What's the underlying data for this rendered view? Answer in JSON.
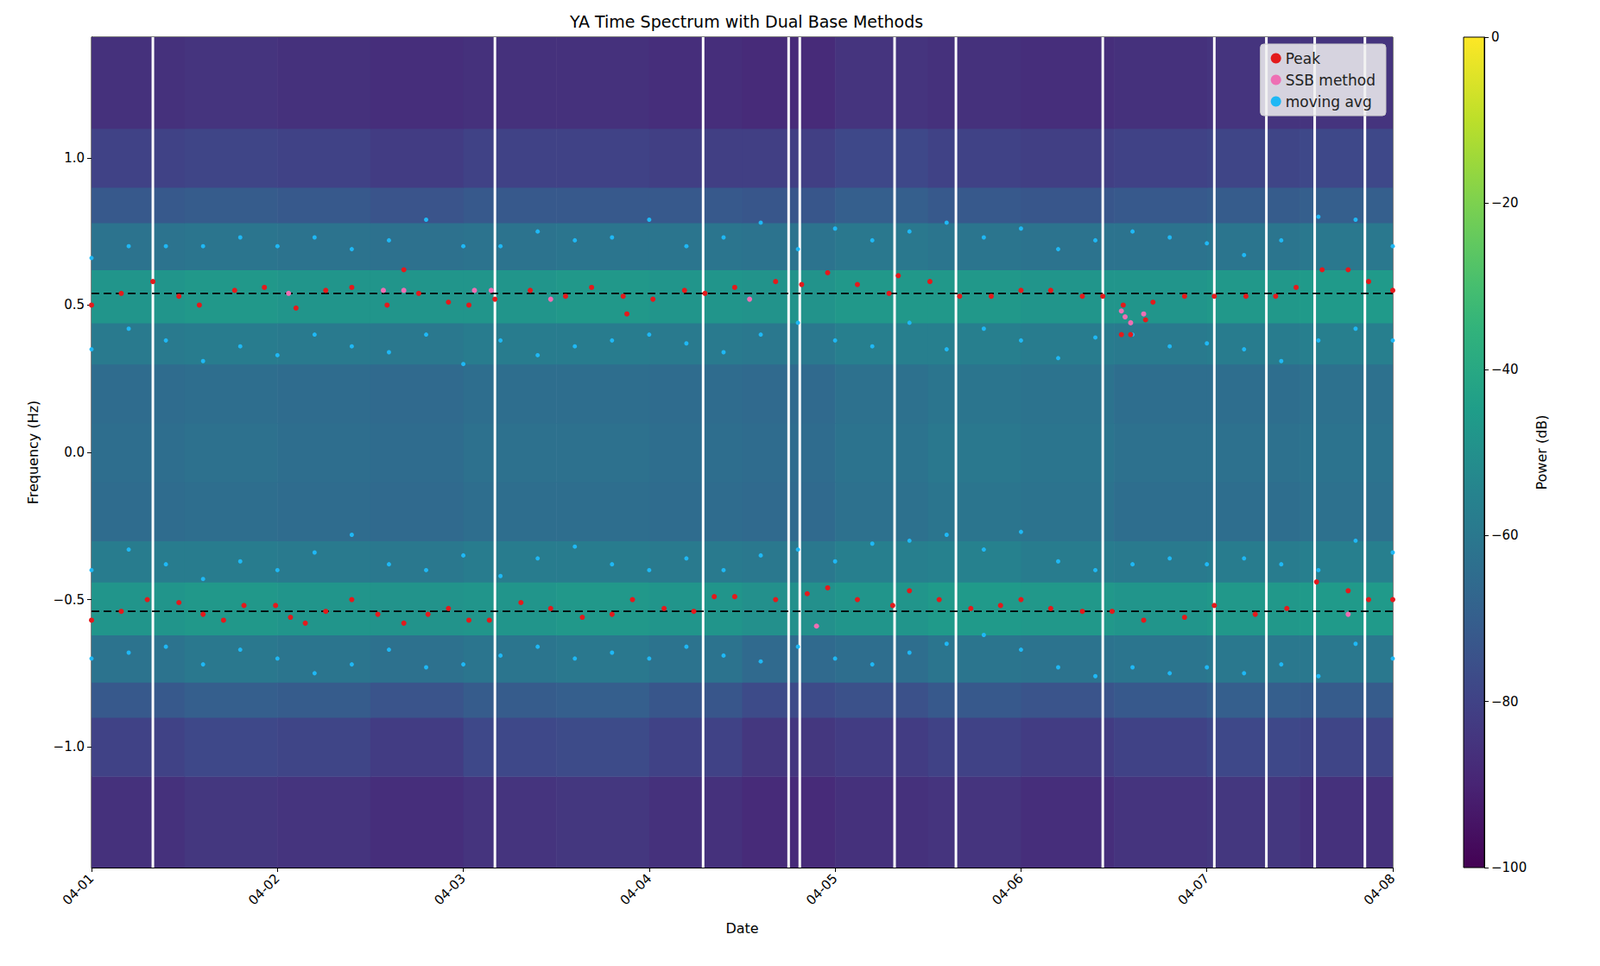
{
  "chart_data": {
    "type": "scatter",
    "title": "YA Time Spectrum with Dual Base Methods",
    "x_label": "Date",
    "y_label": "Frequency (Hz)",
    "grid": false,
    "legend": "upper right",
    "xlim": [
      0,
      7
    ],
    "xticks": [
      {
        "value": 0,
        "label": "04-01"
      },
      {
        "value": 1,
        "label": "04-02"
      },
      {
        "value": 2,
        "label": "04-03"
      },
      {
        "value": 3,
        "label": "04-04"
      },
      {
        "value": 4,
        "label": "04-05"
      },
      {
        "value": 5,
        "label": "04-06"
      },
      {
        "value": 6,
        "label": "04-07"
      },
      {
        "value": 7,
        "label": "04-08"
      }
    ],
    "ylim": [
      -1.41,
      1.41
    ],
    "yticks": [
      {
        "value": -1,
        "label": "−1.0"
      },
      {
        "value": -0.5,
        "label": "−0.5"
      },
      {
        "value": 0,
        "label": "0.0"
      },
      {
        "value": 0.5,
        "label": "0.5"
      },
      {
        "value": 1,
        "label": "1.0"
      }
    ],
    "series": [
      {
        "name": "Peak",
        "color": "#e31a1c",
        "marker": "circle",
        "x": [
          0,
          0.16,
          0.33,
          0.47,
          0.58,
          0.77,
          0.93,
          1.1,
          1.26,
          1.4,
          1.59,
          1.76,
          1.92,
          2.03,
          2.17,
          2.36,
          2.55,
          2.69,
          2.86,
          3.02,
          3.19,
          3.3,
          3.46,
          3.68,
          3.82,
          3.96,
          4.12,
          4.29,
          4.34,
          4.51,
          4.67,
          4.84,
          5,
          5.16,
          5.33,
          5.44,
          5.55,
          5.71,
          5.88,
          6.04,
          6.21,
          6.37,
          6.48,
          6.62,
          6.76,
          6.87,
          7,
          0,
          0.16,
          0.3,
          0.47,
          0.6,
          0.71,
          0.82,
          0.99,
          1.07,
          1.15,
          1.26,
          1.4,
          1.54,
          1.68,
          1.81,
          1.92,
          2.03,
          2.14,
          2.31,
          2.47,
          2.64,
          2.8,
          2.91,
          3.08,
          3.24,
          3.35,
          3.46,
          3.68,
          3.85,
          3.96,
          4.12,
          4.31,
          4.4,
          4.56,
          4.73,
          4.89,
          5,
          5.16,
          5.33,
          5.49,
          5.66,
          5.88,
          6.04,
          6.26,
          6.43,
          6.59,
          6.76,
          6.87,
          7,
          1.68,
          2.88,
          5.54,
          5.59,
          5.67
        ],
        "values": [
          0.5,
          0.54,
          0.58,
          0.53,
          0.5,
          0.55,
          0.56,
          0.49,
          0.55,
          0.56,
          0.5,
          0.54,
          0.51,
          0.5,
          0.52,
          0.55,
          0.53,
          0.56,
          0.53,
          0.52,
          0.55,
          0.54,
          0.56,
          0.58,
          0.57,
          0.61,
          0.57,
          0.54,
          0.6,
          0.58,
          0.53,
          0.53,
          0.55,
          0.55,
          0.53,
          0.53,
          0.5,
          0.51,
          0.53,
          0.53,
          0.53,
          0.53,
          0.56,
          0.62,
          0.62,
          0.58,
          0.55,
          -0.57,
          -0.54,
          -0.5,
          -0.51,
          -0.55,
          -0.57,
          -0.52,
          -0.52,
          -0.56,
          -0.58,
          -0.54,
          -0.5,
          -0.55,
          -0.58,
          -0.55,
          -0.53,
          -0.57,
          -0.57,
          -0.51,
          -0.53,
          -0.56,
          -0.55,
          -0.5,
          -0.53,
          -0.54,
          -0.49,
          -0.49,
          -0.5,
          -0.48,
          -0.46,
          -0.5,
          -0.52,
          -0.47,
          -0.5,
          -0.53,
          -0.52,
          -0.5,
          -0.53,
          -0.54,
          -0.54,
          -0.57,
          -0.56,
          -0.52,
          -0.55,
          -0.53,
          -0.44,
          -0.47,
          -0.5,
          -0.5,
          0.62,
          0.47,
          0.4,
          0.4,
          0.45
        ]
      },
      {
        "name": "SSB method",
        "color": "#ee6fb4",
        "marker": "circle",
        "x": [
          1.06,
          1.57,
          1.68,
          2.06,
          2.15,
          2.47,
          3.54,
          5.54,
          5.56,
          5.59,
          5.66,
          3.9,
          6.76
        ],
        "values": [
          0.54,
          0.55,
          0.55,
          0.55,
          0.55,
          0.52,
          0.52,
          0.48,
          0.46,
          0.44,
          0.47,
          -0.59,
          -0.55
        ]
      },
      {
        "name": "moving avg",
        "color": "#1fb8f5",
        "marker": "circle",
        "x": [
          0,
          0.2,
          0.4,
          0.6,
          0.8,
          1,
          1.2,
          1.4,
          1.6,
          1.8,
          2,
          2.2,
          2.4,
          2.6,
          2.8,
          3,
          3.2,
          3.4,
          3.6,
          3.8,
          4,
          4.2,
          4.4,
          4.6,
          4.8,
          5,
          5.2,
          5.4,
          5.6,
          5.8,
          6,
          6.2,
          6.4,
          6.6,
          6.8,
          7,
          0,
          0.2,
          0.4,
          0.6,
          0.8,
          1,
          1.2,
          1.4,
          1.6,
          1.8,
          2,
          2.2,
          2.4,
          2.6,
          2.8,
          3,
          3.2,
          3.4,
          3.6,
          3.8,
          4,
          4.2,
          4.4,
          4.6,
          4.8,
          5,
          5.2,
          5.4,
          5.6,
          5.8,
          6,
          6.2,
          6.4,
          6.6,
          6.8,
          7,
          0,
          0.2,
          0.4,
          0.6,
          0.8,
          1,
          1.2,
          1.4,
          1.6,
          1.8,
          2,
          2.2,
          2.4,
          2.6,
          2.8,
          3,
          3.2,
          3.4,
          3.6,
          3.8,
          4,
          4.2,
          4.4,
          4.6,
          4.8,
          5,
          5.2,
          5.4,
          5.6,
          5.8,
          6,
          6.2,
          6.4,
          6.6,
          6.8,
          7,
          0,
          0.2,
          0.4,
          0.6,
          0.8,
          1,
          1.2,
          1.4,
          1.6,
          1.8,
          2,
          2.2,
          2.4,
          2.6,
          2.8,
          3,
          3.2,
          3.4,
          3.6,
          3.8,
          4,
          4.2,
          4.4,
          4.6,
          4.8,
          5,
          5.2,
          5.4,
          5.6,
          5.8,
          6,
          6.2,
          6.4,
          6.6,
          6.8,
          7
        ],
        "values": [
          0.66,
          0.7,
          0.7,
          0.7,
          0.73,
          0.7,
          0.73,
          0.69,
          0.72,
          0.79,
          0.7,
          0.7,
          0.75,
          0.72,
          0.73,
          0.79,
          0.7,
          0.73,
          0.78,
          0.69,
          0.76,
          0.72,
          0.75,
          0.78,
          0.73,
          0.76,
          0.69,
          0.72,
          0.75,
          0.73,
          0.71,
          0.67,
          0.72,
          0.8,
          0.79,
          0.7,
          0.35,
          0.42,
          0.38,
          0.31,
          0.36,
          0.33,
          0.4,
          0.36,
          0.34,
          0.4,
          0.3,
          0.38,
          0.33,
          0.36,
          0.38,
          0.4,
          0.37,
          0.34,
          0.4,
          0.44,
          0.38,
          0.36,
          0.44,
          0.35,
          0.42,
          0.38,
          0.32,
          0.39,
          0.4,
          0.36,
          0.37,
          0.35,
          0.31,
          0.38,
          0.42,
          0.38,
          -0.4,
          -0.33,
          -0.38,
          -0.43,
          -0.37,
          -0.4,
          -0.34,
          -0.28,
          -0.38,
          -0.4,
          -0.35,
          -0.42,
          -0.36,
          -0.32,
          -0.38,
          -0.4,
          -0.36,
          -0.4,
          -0.35,
          -0.33,
          -0.37,
          -0.31,
          -0.3,
          -0.28,
          -0.33,
          -0.27,
          -0.37,
          -0.4,
          -0.38,
          -0.36,
          -0.38,
          -0.36,
          -0.38,
          -0.4,
          -0.3,
          -0.34,
          -0.7,
          -0.68,
          -0.66,
          -0.72,
          -0.67,
          -0.7,
          -0.75,
          -0.72,
          -0.67,
          -0.73,
          -0.72,
          -0.69,
          -0.66,
          -0.7,
          -0.68,
          -0.7,
          -0.66,
          -0.69,
          -0.71,
          -0.66,
          -0.7,
          -0.72,
          -0.68,
          -0.65,
          -0.62,
          -0.67,
          -0.73,
          -0.76,
          -0.73,
          -0.75,
          -0.73,
          -0.75,
          -0.72,
          -0.76,
          -0.65,
          -0.7
        ]
      }
    ],
    "hlines": {
      "values": [
        0.54,
        -0.54
      ],
      "color": "#000000",
      "line_style": "dashed"
    },
    "vlines": {
      "values": [
        0.33,
        2.17,
        3.29,
        3.75,
        3.81,
        4.32,
        4.65,
        5.44,
        6.04,
        6.32,
        6.58,
        6.85
      ],
      "color": "#ffffff",
      "line_style": "solid"
    },
    "spectrogram": {
      "x_edges": [
        0,
        0.5,
        1,
        1.5,
        2,
        2.5,
        3,
        3.5,
        4,
        4.5,
        5,
        5.5,
        6,
        6.5,
        7
      ],
      "y_edges": [
        -1.41,
        -1.1,
        -0.9,
        -0.78,
        -0.62,
        -0.44,
        -0.3,
        -0.1,
        0.1,
        0.3,
        0.44,
        0.62,
        0.78,
        0.9,
        1.1,
        1.41
      ],
      "values": [
        [
          -86,
          -84,
          -85,
          -87,
          -85,
          -84,
          -86,
          -88,
          -86,
          -85,
          -87,
          -85,
          -84,
          -86
        ],
        [
          -80,
          -78,
          -79,
          -82,
          -78,
          -77,
          -80,
          -84,
          -82,
          -80,
          -82,
          -80,
          -78,
          -79
        ],
        [
          -72,
          -70,
          -71,
          -74,
          -71,
          -70,
          -73,
          -77,
          -75,
          -72,
          -74,
          -72,
          -70,
          -71
        ],
        [
          -62,
          -60,
          -61,
          -63,
          -61,
          -60,
          -62,
          -66,
          -64,
          -61,
          -62,
          -61,
          -60,
          -60
        ],
        [
          -48,
          -47,
          -48,
          -49,
          -48,
          -47,
          -48,
          -50,
          -48,
          -46,
          -47,
          -48,
          -47,
          -46
        ],
        [
          -58,
          -58,
          -59,
          -60,
          -58,
          -58,
          -59,
          -60,
          -57,
          -56,
          -58,
          -59,
          -58,
          -57
        ],
        [
          -65,
          -64,
          -65,
          -66,
          -64,
          -64,
          -65,
          -66,
          -63,
          -61,
          -62,
          -64,
          -64,
          -63
        ],
        [
          -64,
          -63,
          -64,
          -65,
          -63,
          -63,
          -64,
          -65,
          -62,
          -60,
          -61,
          -63,
          -63,
          -62
        ],
        [
          -65,
          -64,
          -65,
          -66,
          -64,
          -64,
          -65,
          -66,
          -63,
          -61,
          -62,
          -64,
          -64,
          -63
        ],
        [
          -59,
          -58,
          -59,
          -60,
          -58,
          -58,
          -59,
          -60,
          -57,
          -57,
          -58,
          -59,
          -58,
          -57
        ],
        [
          -48,
          -47,
          -48,
          -48,
          -48,
          -47,
          -48,
          -49,
          -47,
          -47,
          -48,
          -48,
          -47,
          -46
        ],
        [
          -62,
          -61,
          -62,
          -63,
          -62,
          -61,
          -61,
          -62,
          -60,
          -61,
          -62,
          -62,
          -61,
          -60
        ],
        [
          -72,
          -71,
          -72,
          -74,
          -72,
          -72,
          -72,
          -73,
          -70,
          -72,
          -73,
          -72,
          -71,
          -70
        ],
        [
          -80,
          -79,
          -80,
          -82,
          -80,
          -80,
          -81,
          -81,
          -78,
          -80,
          -81,
          -80,
          -79,
          -78
        ],
        [
          -86,
          -85,
          -86,
          -87,
          -86,
          -86,
          -87,
          -88,
          -85,
          -86,
          -87,
          -86,
          -85,
          -85
        ]
      ]
    },
    "colorbar": {
      "label": "Power (dB)",
      "lim": [
        -100,
        0
      ],
      "ticks": [
        {
          "value": -100,
          "label": "−100"
        },
        {
          "value": -80,
          "label": "−80"
        },
        {
          "value": -60,
          "label": "−60"
        },
        {
          "value": -40,
          "label": "−40"
        },
        {
          "value": -20,
          "label": "−20"
        },
        0
      ]
    }
  }
}
